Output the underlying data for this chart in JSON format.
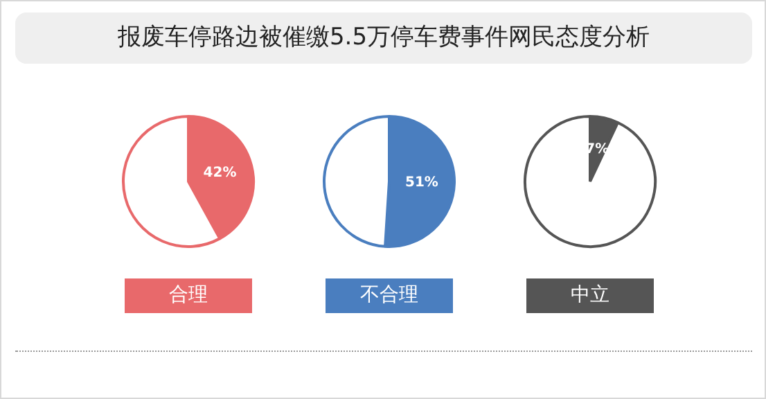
{
  "chart_data": [
    {
      "type": "other",
      "title": "报废车停路边被催缴5.5万停车费事件网民态度分析"
    },
    {
      "type": "pie",
      "xlabel": "合理",
      "categories": [
        null,
        null
      ],
      "values": [
        42,
        58
      ],
      "colors": [
        "#e8696b",
        "#ffffff"
      ],
      "value_labels": [
        "42%",
        null
      ],
      "legend": false
    },
    {
      "type": "pie",
      "xlabel": "不合理",
      "categories": [
        null,
        null
      ],
      "values": [
        51,
        49
      ],
      "colors": [
        "#4a7ebf",
        "#ffffff"
      ],
      "value_labels": [
        "51%",
        null
      ],
      "legend": false
    },
    {
      "type": "pie",
      "xlabel": "中立",
      "categories": [
        null,
        null
      ],
      "values": [
        7,
        93
      ],
      "colors": [
        "#555555",
        "#ffffff"
      ],
      "value_labels": [
        "7%",
        null
      ],
      "legend": false
    }
  ]
}
